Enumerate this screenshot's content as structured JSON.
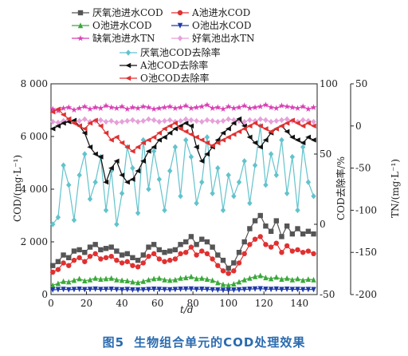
{
  "caption": {
    "figure_no": "图5",
    "title": "生物组合单元的COD处理效果"
  },
  "chart_data": {
    "type": "line",
    "xlabel": "t/d",
    "ylabel_left": "COD/(mg·L⁻¹)",
    "ylabel_right1": "COD去除率/%",
    "ylabel_right2": "TN/(mg·L⁻¹)",
    "xlim": [
      0,
      150
    ],
    "ylim_left": [
      0,
      8000
    ],
    "ylim_right1": [
      -50,
      100
    ],
    "ylim_right2": [
      -200,
      50
    ],
    "x_ticks": [
      "0",
      "20",
      "40",
      "60",
      "80",
      "100",
      "120",
      "140"
    ],
    "y_left_ticks": [
      "0",
      "2 000",
      "4 000",
      "6 000",
      "8 000"
    ],
    "y_right1_ticks": [
      "-50",
      "0",
      "50",
      "100"
    ],
    "y_right2_ticks": [
      "-200",
      "-150",
      "-100",
      "-50",
      "0",
      "50"
    ],
    "x": [
      1,
      4,
      7,
      10,
      13,
      16,
      19,
      22,
      25,
      28,
      31,
      34,
      37,
      40,
      43,
      46,
      49,
      52,
      55,
      58,
      61,
      64,
      67,
      70,
      73,
      76,
      79,
      82,
      85,
      88,
      91,
      94,
      97,
      100,
      103,
      106,
      109,
      112,
      115,
      118,
      121,
      124,
      127,
      130,
      133,
      136,
      139,
      142,
      145,
      148
    ],
    "series": [
      {
        "name": "厌氧池进水COD",
        "axis": "left",
        "color": "#555555",
        "marker": "square",
        "values": [
          1100,
          1250,
          1500,
          1400,
          1650,
          1700,
          1600,
          1800,
          1900,
          1700,
          1750,
          1800,
          1650,
          1500,
          1550,
          1400,
          1300,
          1500,
          1800,
          1900,
          1700,
          1600,
          1650,
          1700,
          1900,
          2000,
          2200,
          1900,
          2100,
          2000,
          1800,
          1500,
          1300,
          1000,
          1200,
          1600,
          2000,
          2500,
          2800,
          3000,
          2600,
          2400,
          2800,
          2200,
          2600,
          2300,
          2500,
          2300,
          2400,
          2300
        ]
      },
      {
        "name": "A池进水COD",
        "axis": "left",
        "color": "#e03030",
        "marker": "circle",
        "values": [
          850,
          950,
          1200,
          1100,
          1300,
          1400,
          1250,
          1450,
          1550,
          1350,
          1400,
          1450,
          1300,
          1200,
          1250,
          1100,
          1050,
          1200,
          1450,
          1550,
          1350,
          1250,
          1300,
          1350,
          1550,
          1600,
          1800,
          1500,
          1650,
          1550,
          1350,
          1100,
          900,
          800,
          900,
          1200,
          1550,
          1900,
          2100,
          2200,
          1900,
          1800,
          1950,
          1600,
          1850,
          1650,
          1700,
          1600,
          1650,
          1550
        ]
      },
      {
        "name": "O池进水COD",
        "axis": "left",
        "color": "#3aa83a",
        "marker": "triangle-up",
        "values": [
          350,
          420,
          500,
          480,
          540,
          600,
          520,
          560,
          620,
          580,
          600,
          620,
          560,
          540,
          520,
          480,
          450,
          500,
          560,
          600,
          620,
          560,
          540,
          560,
          620,
          640,
          680,
          600,
          620,
          580,
          540,
          450,
          380,
          350,
          400,
          480,
          560,
          620,
          680,
          720,
          640,
          600,
          660,
          580,
          620,
          560,
          600,
          540,
          580,
          560
        ]
      },
      {
        "name": "O池出水COD",
        "axis": "left",
        "color": "#1f3aa8",
        "marker": "triangle-down",
        "values": [
          180,
          190,
          200,
          185,
          195,
          205,
          190,
          200,
          210,
          195,
          200,
          205,
          190,
          185,
          195,
          180,
          175,
          185,
          195,
          205,
          200,
          190,
          185,
          195,
          205,
          210,
          215,
          200,
          205,
          195,
          185,
          175,
          170,
          165,
          175,
          185,
          195,
          205,
          215,
          220,
          205,
          200,
          210,
          195,
          205,
          195,
          200,
          190,
          195,
          190
        ]
      },
      {
        "name": "缺氧池进水TN",
        "axis": "right2",
        "color": "#d83fb4",
        "marker": "star",
        "values": [
          20,
          18,
          21,
          22,
          19,
          21,
          23,
          20,
          22,
          21,
          24,
          22,
          21,
          23,
          20,
          22,
          21,
          23,
          22,
          20,
          21,
          22,
          23,
          21,
          22,
          24,
          21,
          22,
          23,
          25,
          21,
          22,
          20,
          23,
          21,
          22,
          24,
          21,
          22,
          23,
          25,
          22,
          21,
          24,
          23,
          22,
          21,
          23,
          20,
          22
        ]
      },
      {
        "name": "好氧池出水TN",
        "axis": "right2",
        "color": "#e6a0da",
        "marker": "diamond",
        "values": [
          5,
          4,
          6,
          7,
          5,
          6,
          8,
          5,
          6,
          7,
          5,
          6,
          4,
          5,
          6,
          7,
          5,
          6,
          8,
          7,
          5,
          6,
          7,
          5,
          6,
          8,
          7,
          6,
          5,
          7,
          6,
          5,
          6,
          8,
          7,
          6,
          5,
          7,
          6,
          8,
          7,
          5,
          6,
          7,
          8,
          6,
          5,
          7,
          6,
          5
        ]
      },
      {
        "name": "厌氧池COD去除率",
        "axis": "right1",
        "color": "#62c3cc",
        "marker": "diamond",
        "values": [
          0,
          5,
          42,
          28,
          3,
          35,
          50,
          18,
          30,
          48,
          10,
          38,
          0,
          22,
          55,
          40,
          8,
          60,
          25,
          52,
          32,
          10,
          38,
          55,
          20,
          60,
          48,
          15,
          30,
          62,
          22,
          40,
          10,
          35,
          20,
          30,
          45,
          15,
          42,
          70,
          28,
          50,
          35,
          60,
          22,
          48,
          10,
          55,
          30,
          20
        ]
      },
      {
        "name": "A池COD去除率",
        "axis": "right1",
        "color": "#111111",
        "marker": "triangle-left",
        "values": [
          68,
          70,
          72,
          73,
          74,
          70,
          65,
          55,
          50,
          48,
          30,
          40,
          45,
          35,
          30,
          32,
          38,
          45,
          52,
          55,
          60,
          62,
          65,
          68,
          70,
          72,
          70,
          55,
          45,
          50,
          55,
          60,
          65,
          68,
          72,
          75,
          70,
          62,
          58,
          55,
          60,
          65,
          68,
          70,
          66,
          62,
          60,
          58,
          62,
          60
        ]
      },
      {
        "name": "O池COD去除率",
        "axis": "right1",
        "color": "#e03030",
        "marker": "triangle-left",
        "values": [
          80,
          82,
          78,
          75,
          72,
          70,
          68,
          72,
          74,
          70,
          65,
          60,
          62,
          58,
          55,
          52,
          55,
          58,
          60,
          62,
          65,
          68,
          70,
          72,
          68,
          66,
          64,
          62,
          60,
          58,
          56,
          58,
          60,
          62,
          64,
          66,
          68,
          70,
          72,
          70,
          68,
          66,
          68,
          70,
          72,
          74,
          72,
          70,
          72,
          70
        ]
      }
    ]
  }
}
